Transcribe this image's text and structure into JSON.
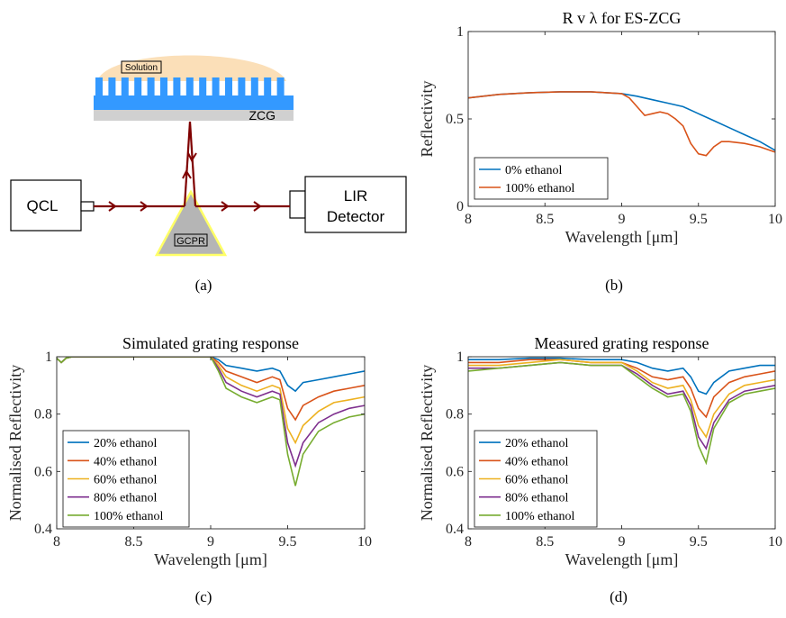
{
  "panels": {
    "a": {
      "caption": "(a)",
      "labels": {
        "solution": "Solution",
        "zcg": "ZCG",
        "qcl": "QCL",
        "lir_line1": "LIR",
        "lir_line2": "Detector",
        "gcpr": "GCPR"
      },
      "colors": {
        "solution": "#fbdfb8",
        "grating": "#3399ff",
        "substrate": "#d0d0d0",
        "beam": "#7f0000",
        "prism_fill": "#b5b5b5",
        "prism_edge": "#ffff66"
      }
    },
    "b": {
      "caption": "(b)"
    },
    "c": {
      "caption": "(c)"
    },
    "d": {
      "caption": "(d)"
    }
  },
  "chart_data": [
    {
      "id": "b",
      "type": "line",
      "title": "R v λ for ES-ZCG",
      "xlabel": "Wavelength [μm]",
      "ylabel": "Reflectivity",
      "xlim": [
        8,
        10
      ],
      "ylim": [
        0,
        1
      ],
      "xticks": [
        "8",
        "8.5",
        "9",
        "9.5",
        "10"
      ],
      "yticks": [
        "0",
        "0.5",
        "1"
      ],
      "grid": false,
      "legend": "bottom-left",
      "series": [
        {
          "name": "0% ethanol",
          "color": "#0072bd",
          "x": [
            8.0,
            8.2,
            8.4,
            8.6,
            8.8,
            9.0,
            9.1,
            9.2,
            9.3,
            9.4,
            9.5,
            9.6,
            9.7,
            9.8,
            9.9,
            10.0
          ],
          "y": [
            0.62,
            0.64,
            0.65,
            0.655,
            0.655,
            0.645,
            0.63,
            0.61,
            0.59,
            0.57,
            0.53,
            0.49,
            0.45,
            0.41,
            0.37,
            0.32
          ]
        },
        {
          "name": "100% ethanol",
          "color": "#d95319",
          "x": [
            8.0,
            8.2,
            8.4,
            8.6,
            8.8,
            9.0,
            9.05,
            9.1,
            9.15,
            9.2,
            9.25,
            9.3,
            9.35,
            9.4,
            9.45,
            9.5,
            9.55,
            9.6,
            9.65,
            9.7,
            9.8,
            9.9,
            10.0
          ],
          "y": [
            0.62,
            0.64,
            0.65,
            0.655,
            0.655,
            0.645,
            0.62,
            0.57,
            0.52,
            0.53,
            0.54,
            0.53,
            0.5,
            0.46,
            0.36,
            0.3,
            0.29,
            0.34,
            0.37,
            0.37,
            0.36,
            0.34,
            0.31
          ]
        }
      ]
    },
    {
      "id": "c",
      "type": "line",
      "title": "Simulated grating response",
      "xlabel": "Wavelength [μm]",
      "ylabel": "Normalised Reflectivity",
      "xlim": [
        8,
        10
      ],
      "ylim": [
        0.4,
        1
      ],
      "xticks": [
        "8",
        "8.5",
        "9",
        "9.5",
        "10"
      ],
      "yticks": [
        "0.4",
        "0.6",
        "0.8",
        "1"
      ],
      "grid": false,
      "legend": "bottom-left",
      "series": [
        {
          "name": "20% ethanol",
          "color": "#0072bd",
          "x": [
            8.0,
            8.03,
            8.06,
            8.1,
            9.0,
            9.05,
            9.1,
            9.2,
            9.3,
            9.4,
            9.45,
            9.5,
            9.55,
            9.6,
            9.7,
            9.8,
            9.9,
            10.0
          ],
          "y": [
            0.995,
            0.98,
            0.995,
            1.0,
            1.0,
            0.99,
            0.97,
            0.96,
            0.95,
            0.96,
            0.95,
            0.9,
            0.88,
            0.91,
            0.92,
            0.93,
            0.94,
            0.95
          ]
        },
        {
          "name": "40% ethanol",
          "color": "#d95319",
          "x": [
            8.0,
            8.03,
            8.06,
            8.1,
            9.0,
            9.05,
            9.1,
            9.2,
            9.3,
            9.4,
            9.45,
            9.5,
            9.55,
            9.6,
            9.7,
            9.8,
            9.9,
            10.0
          ],
          "y": [
            0.995,
            0.98,
            0.995,
            1.0,
            1.0,
            0.98,
            0.95,
            0.93,
            0.91,
            0.93,
            0.92,
            0.82,
            0.78,
            0.83,
            0.86,
            0.88,
            0.89,
            0.9
          ]
        },
        {
          "name": "60% ethanol",
          "color": "#edb120",
          "x": [
            8.0,
            8.03,
            8.06,
            8.1,
            9.0,
            9.05,
            9.1,
            9.2,
            9.3,
            9.4,
            9.45,
            9.5,
            9.55,
            9.6,
            9.7,
            9.8,
            9.9,
            10.0
          ],
          "y": [
            0.995,
            0.98,
            0.995,
            1.0,
            1.0,
            0.97,
            0.93,
            0.9,
            0.88,
            0.9,
            0.89,
            0.75,
            0.7,
            0.76,
            0.81,
            0.84,
            0.85,
            0.86
          ]
        },
        {
          "name": "80% ethanol",
          "color": "#7e2f8e",
          "x": [
            8.0,
            8.03,
            8.06,
            8.1,
            9.0,
            9.05,
            9.1,
            9.2,
            9.3,
            9.4,
            9.45,
            9.5,
            9.55,
            9.6,
            9.7,
            9.8,
            9.9,
            10.0
          ],
          "y": [
            0.995,
            0.98,
            0.995,
            1.0,
            1.0,
            0.96,
            0.91,
            0.88,
            0.86,
            0.88,
            0.87,
            0.7,
            0.62,
            0.7,
            0.77,
            0.8,
            0.82,
            0.83
          ]
        },
        {
          "name": "100% ethanol",
          "color": "#77ac30",
          "x": [
            8.0,
            8.03,
            8.06,
            8.1,
            9.0,
            9.05,
            9.1,
            9.2,
            9.3,
            9.4,
            9.45,
            9.5,
            9.55,
            9.6,
            9.7,
            9.8,
            9.9,
            10.0
          ],
          "y": [
            0.995,
            0.98,
            0.995,
            1.0,
            1.0,
            0.95,
            0.89,
            0.86,
            0.84,
            0.86,
            0.85,
            0.66,
            0.55,
            0.66,
            0.74,
            0.77,
            0.79,
            0.8
          ]
        }
      ]
    },
    {
      "id": "d",
      "type": "line",
      "title": "Measured grating response",
      "xlabel": "Wavelength [μm]",
      "ylabel": "Normalised Reflectivity",
      "xlim": [
        8,
        10
      ],
      "ylim": [
        0.4,
        1
      ],
      "xticks": [
        "8",
        "8.5",
        "9",
        "9.5",
        "10"
      ],
      "yticks": [
        "0.4",
        "0.6",
        "0.8",
        "1"
      ],
      "grid": false,
      "legend": "bottom-left",
      "series": [
        {
          "name": "20% ethanol",
          "color": "#0072bd",
          "x": [
            8.0,
            8.2,
            8.4,
            8.6,
            8.8,
            9.0,
            9.1,
            9.2,
            9.3,
            9.4,
            9.45,
            9.5,
            9.55,
            9.6,
            9.7,
            9.8,
            9.9,
            10.0
          ],
          "y": [
            0.99,
            0.99,
            0.995,
            0.995,
            0.99,
            0.99,
            0.98,
            0.96,
            0.95,
            0.96,
            0.93,
            0.88,
            0.87,
            0.91,
            0.95,
            0.96,
            0.97,
            0.97
          ]
        },
        {
          "name": "40% ethanol",
          "color": "#d95319",
          "x": [
            8.0,
            8.2,
            8.4,
            8.6,
            8.8,
            9.0,
            9.1,
            9.2,
            9.3,
            9.4,
            9.45,
            9.5,
            9.55,
            9.6,
            9.7,
            9.8,
            9.9,
            10.0
          ],
          "y": [
            0.98,
            0.98,
            0.99,
            0.99,
            0.98,
            0.98,
            0.96,
            0.93,
            0.92,
            0.93,
            0.89,
            0.82,
            0.79,
            0.86,
            0.91,
            0.93,
            0.94,
            0.95
          ]
        },
        {
          "name": "60% ethanol",
          "color": "#edb120",
          "x": [
            8.0,
            8.2,
            8.4,
            8.6,
            8.8,
            9.0,
            9.1,
            9.2,
            9.3,
            9.4,
            9.45,
            9.5,
            9.55,
            9.6,
            9.7,
            9.8,
            9.9,
            10.0
          ],
          "y": [
            0.97,
            0.97,
            0.98,
            0.99,
            0.98,
            0.98,
            0.95,
            0.91,
            0.89,
            0.9,
            0.85,
            0.76,
            0.72,
            0.8,
            0.87,
            0.9,
            0.91,
            0.92
          ]
        },
        {
          "name": "80% ethanol",
          "color": "#7e2f8e",
          "x": [
            8.0,
            8.2,
            8.4,
            8.6,
            8.8,
            9.0,
            9.1,
            9.2,
            9.3,
            9.4,
            9.45,
            9.5,
            9.55,
            9.6,
            9.7,
            9.8,
            9.9,
            10.0
          ],
          "y": [
            0.96,
            0.96,
            0.97,
            0.98,
            0.97,
            0.97,
            0.94,
            0.9,
            0.87,
            0.88,
            0.83,
            0.72,
            0.68,
            0.77,
            0.85,
            0.88,
            0.89,
            0.9
          ]
        },
        {
          "name": "100% ethanol",
          "color": "#77ac30",
          "x": [
            8.0,
            8.2,
            8.4,
            8.6,
            8.8,
            9.0,
            9.1,
            9.2,
            9.3,
            9.4,
            9.45,
            9.5,
            9.55,
            9.6,
            9.7,
            9.8,
            9.9,
            10.0
          ],
          "y": [
            0.95,
            0.96,
            0.97,
            0.98,
            0.97,
            0.97,
            0.93,
            0.89,
            0.86,
            0.87,
            0.81,
            0.69,
            0.63,
            0.75,
            0.84,
            0.87,
            0.88,
            0.89
          ]
        }
      ]
    }
  ]
}
